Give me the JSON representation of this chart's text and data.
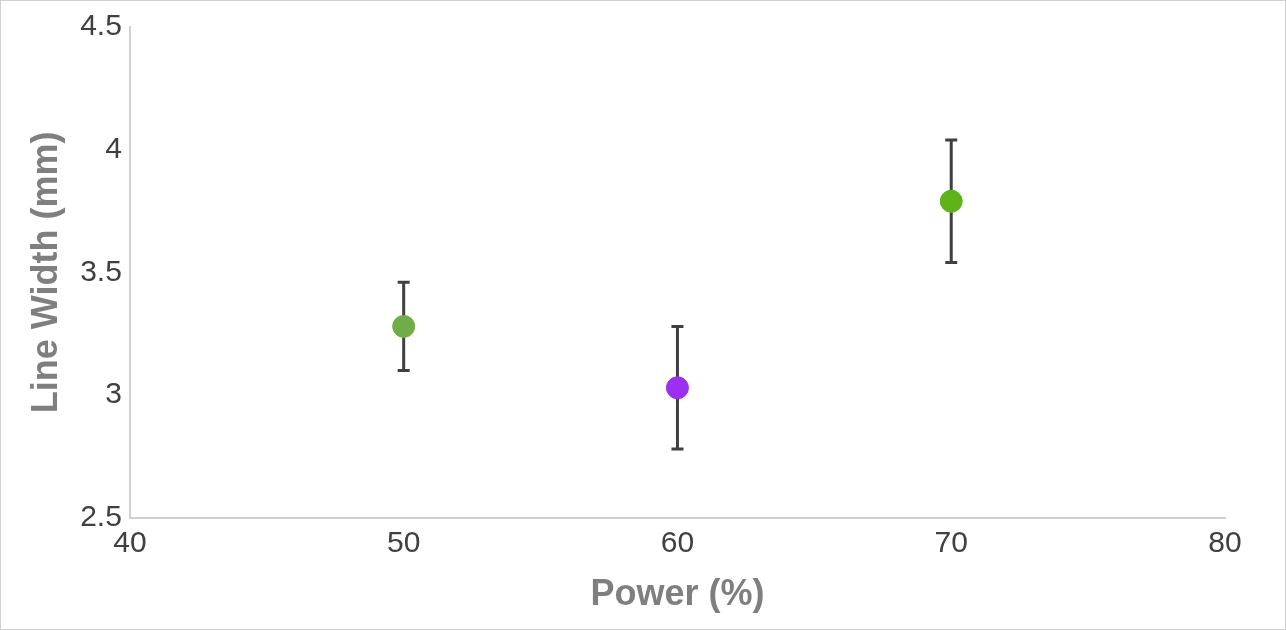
{
  "chart_data": {
    "type": "scatter",
    "xlabel": "Power (%)",
    "ylabel": "Line Width (mm)",
    "x": [
      50,
      60,
      70
    ],
    "values": [
      3.28,
      3.03,
      3.79
    ],
    "errors": [
      0.18,
      0.25,
      0.25
    ],
    "colors": [
      "#70ad47",
      "#9b30f0",
      "#5fb318"
    ],
    "xlim": [
      40,
      80
    ],
    "xticks": [
      40,
      50,
      60,
      70,
      80
    ],
    "ylim": [
      2.5,
      4.5
    ],
    "yticks": [
      2.5,
      3,
      3.5,
      4,
      4.5
    ],
    "grid": false,
    "legend": false,
    "marker": "circle"
  }
}
